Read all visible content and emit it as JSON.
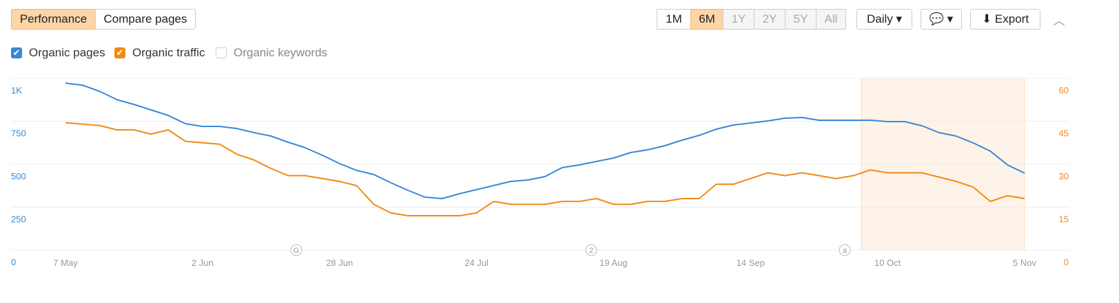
{
  "toolbar": {
    "tabs": [
      "Performance",
      "Compare pages"
    ],
    "ranges": [
      "1M",
      "6M",
      "1Y",
      "2Y",
      "5Y",
      "All"
    ],
    "interval": "Daily",
    "export": "Export",
    "inactive_metric": "Organic keywords"
  },
  "chart_data": {
    "type": "line",
    "categories": [
      "7 May",
      null,
      null,
      null,
      null,
      null,
      null,
      null,
      "2 Jun",
      null,
      null,
      null,
      null,
      null,
      null,
      null,
      "28 Jun",
      null,
      null,
      null,
      null,
      null,
      null,
      null,
      "24 Jul",
      null,
      null,
      null,
      null,
      null,
      null,
      null,
      "19 Aug",
      null,
      null,
      null,
      null,
      null,
      null,
      null,
      "14 Sep",
      null,
      null,
      null,
      null,
      null,
      null,
      null,
      "10 Oct",
      null,
      null,
      null,
      null,
      null,
      null,
      null,
      "5 Nov"
    ],
    "series": [
      {
        "name": "Organic pages",
        "color": "#3a87d6",
        "values": [
          972,
          960,
          924,
          876,
          848,
          816,
          784,
          736,
          720,
          720,
          708,
          684,
          664,
          628,
          596,
          552,
          504,
          464,
          440,
          392,
          348,
          308,
          300,
          328,
          352,
          376,
          400,
          408,
          428,
          480,
          496,
          516,
          536,
          568,
          584,
          608,
          640,
          668,
          704,
          728,
          740,
          752,
          768,
          772,
          756,
          756,
          756,
          756,
          748,
          748,
          724,
          684,
          664,
          624,
          576,
          496,
          448
        ]
      },
      {
        "name": "Organic traffic",
        "color": "#f28a13",
        "axis": "y2",
        "values": [
          44.5,
          44,
          43.5,
          42,
          42,
          40.5,
          42,
          38,
          37.5,
          37,
          33.5,
          31.5,
          28.5,
          26,
          26,
          25,
          24,
          22.5,
          16,
          13,
          12,
          12,
          12,
          12,
          13,
          17,
          16,
          16,
          16,
          17,
          17,
          18,
          16,
          16,
          17,
          17,
          18,
          18,
          23,
          23,
          25,
          27,
          26,
          27,
          26,
          25,
          26,
          28,
          27,
          27,
          27,
          25.5,
          24,
          22,
          17,
          19,
          18
        ]
      }
    ],
    "ylim": [
      0,
      1000
    ],
    "yticks": [
      0,
      250,
      500,
      750,
      {
        "value": 1000,
        "label": "1K"
      }
    ],
    "y2lim": [
      0,
      60
    ],
    "y2ticks": [
      0,
      15,
      30,
      45,
      60
    ],
    "grid": true,
    "annotations": [
      "G",
      "2",
      "a"
    ]
  }
}
